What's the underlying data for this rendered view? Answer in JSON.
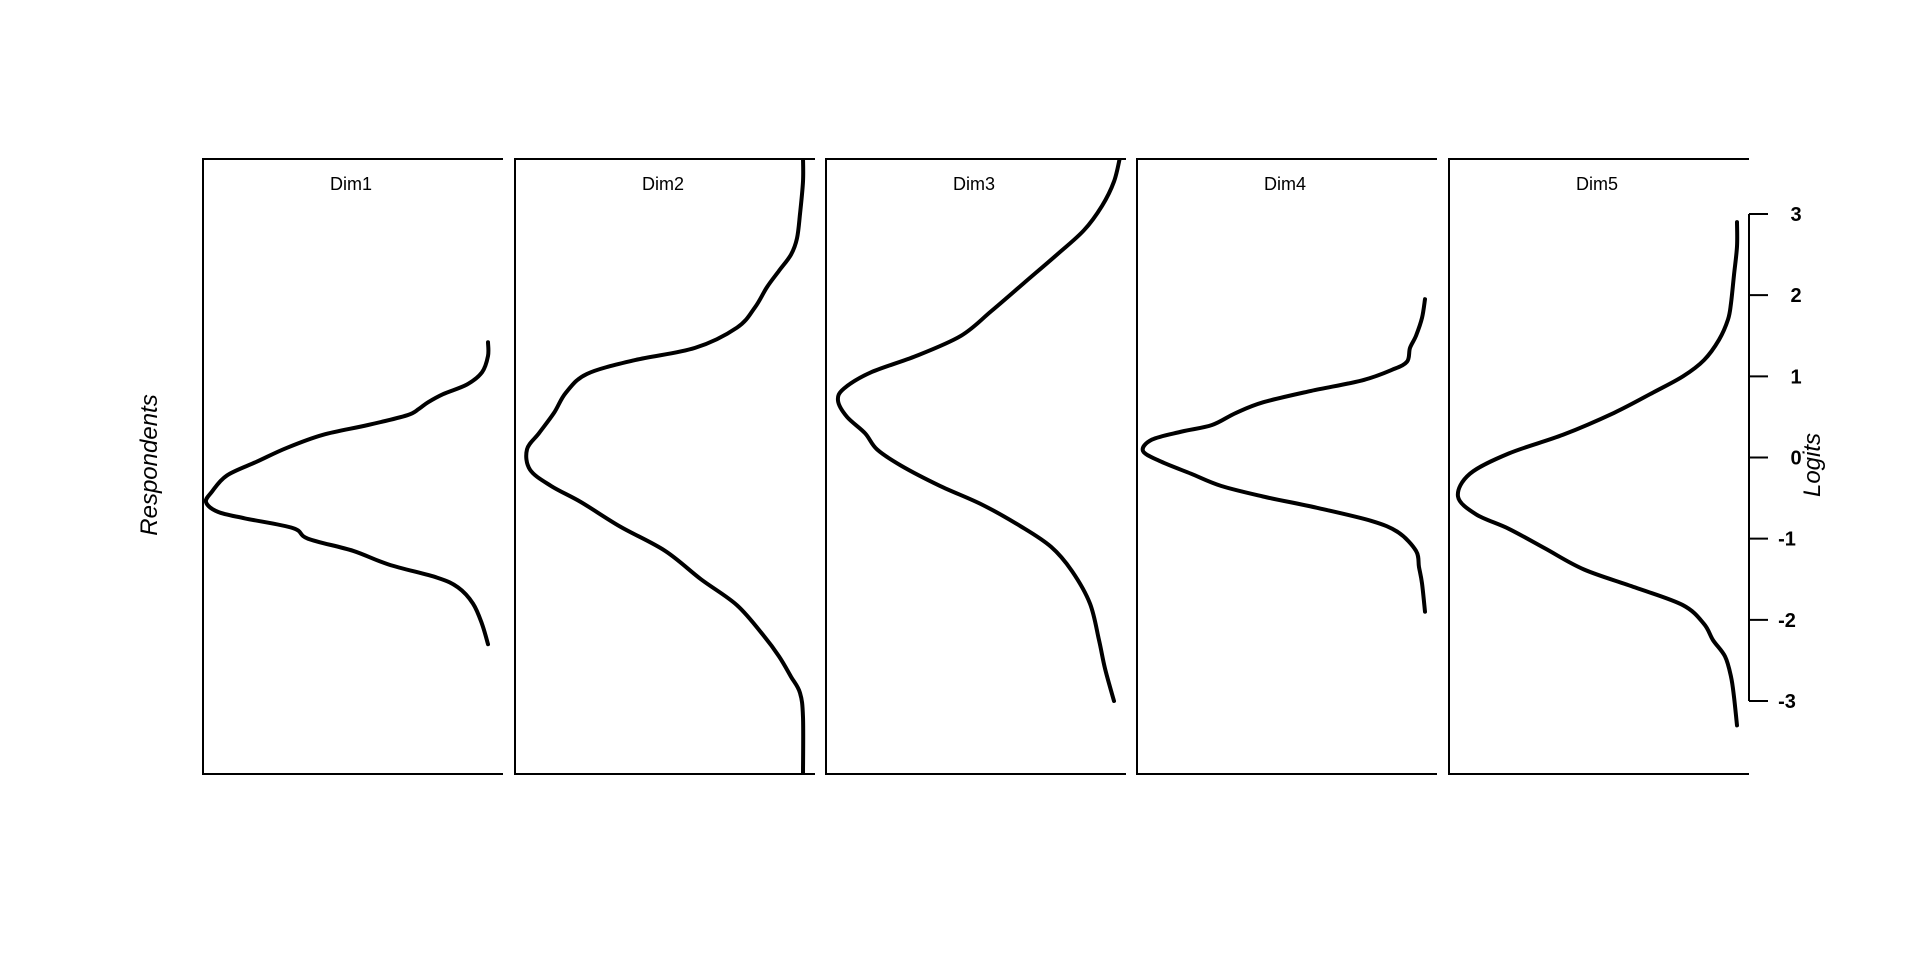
{
  "chart_data": {
    "type": "line",
    "ylabel": "Logits",
    "xlabel": "Respondents",
    "ylim": [
      -3.9,
      3.7
    ],
    "y_ticks": [
      3,
      2,
      1,
      0,
      -1,
      -2,
      -3
    ],
    "y_tick_labels": [
      "3",
      "2",
      "1",
      "0",
      "-1",
      "-2",
      "-3"
    ],
    "grid": false,
    "panels": [
      {
        "title": "Dim1",
        "points": [
          [
            0.95,
            1.42
          ],
          [
            0.95,
            1.25
          ],
          [
            0.93,
            1.05
          ],
          [
            0.88,
            0.9
          ],
          [
            0.8,
            0.78
          ],
          [
            0.75,
            0.68
          ],
          [
            0.72,
            0.6
          ],
          [
            0.68,
            0.52
          ],
          [
            0.55,
            0.4
          ],
          [
            0.4,
            0.28
          ],
          [
            0.28,
            0.12
          ],
          [
            0.18,
            -0.05
          ],
          [
            0.08,
            -0.22
          ],
          [
            0.03,
            -0.42
          ],
          [
            0.01,
            -0.55
          ],
          [
            0.05,
            -0.67
          ],
          [
            0.14,
            -0.75
          ],
          [
            0.3,
            -0.87
          ],
          [
            0.35,
            -1.0
          ],
          [
            0.5,
            -1.15
          ],
          [
            0.62,
            -1.32
          ],
          [
            0.78,
            -1.48
          ],
          [
            0.85,
            -1.6
          ],
          [
            0.9,
            -1.8
          ],
          [
            0.93,
            -2.05
          ],
          [
            0.95,
            -2.3
          ]
        ]
      },
      {
        "title": "Dim2",
        "points": [
          [
            0.96,
            3.7
          ],
          [
            0.96,
            3.4
          ],
          [
            0.95,
            3.0
          ],
          [
            0.94,
            2.7
          ],
          [
            0.92,
            2.5
          ],
          [
            0.88,
            2.3
          ],
          [
            0.84,
            2.1
          ],
          [
            0.8,
            1.85
          ],
          [
            0.74,
            1.6
          ],
          [
            0.6,
            1.35
          ],
          [
            0.4,
            1.2
          ],
          [
            0.24,
            1.03
          ],
          [
            0.17,
            0.8
          ],
          [
            0.13,
            0.55
          ],
          [
            0.08,
            0.3
          ],
          [
            0.04,
            0.1
          ],
          [
            0.05,
            -0.15
          ],
          [
            0.12,
            -0.35
          ],
          [
            0.22,
            -0.55
          ],
          [
            0.35,
            -0.85
          ],
          [
            0.5,
            -1.15
          ],
          [
            0.62,
            -1.5
          ],
          [
            0.74,
            -1.82
          ],
          [
            0.83,
            -2.2
          ],
          [
            0.88,
            -2.45
          ],
          [
            0.92,
            -2.7
          ],
          [
            0.95,
            -2.9
          ],
          [
            0.96,
            -3.2
          ],
          [
            0.96,
            -3.9
          ]
        ]
      },
      {
        "title": "Dim3",
        "points": [
          [
            0.98,
            3.7
          ],
          [
            0.96,
            3.4
          ],
          [
            0.92,
            3.1
          ],
          [
            0.86,
            2.8
          ],
          [
            0.77,
            2.5
          ],
          [
            0.66,
            2.15
          ],
          [
            0.55,
            1.8
          ],
          [
            0.45,
            1.5
          ],
          [
            0.3,
            1.25
          ],
          [
            0.15,
            1.05
          ],
          [
            0.06,
            0.85
          ],
          [
            0.04,
            0.7
          ],
          [
            0.07,
            0.5
          ],
          [
            0.13,
            0.3
          ],
          [
            0.17,
            0.1
          ],
          [
            0.25,
            -0.1
          ],
          [
            0.38,
            -0.35
          ],
          [
            0.52,
            -0.58
          ],
          [
            0.65,
            -0.85
          ],
          [
            0.75,
            -1.1
          ],
          [
            0.82,
            -1.4
          ],
          [
            0.88,
            -1.8
          ],
          [
            0.91,
            -2.25
          ],
          [
            0.93,
            -2.6
          ],
          [
            0.96,
            -3.0
          ]
        ]
      },
      {
        "title": "Dim4",
        "points": [
          [
            0.96,
            1.95
          ],
          [
            0.95,
            1.72
          ],
          [
            0.93,
            1.5
          ],
          [
            0.91,
            1.35
          ],
          [
            0.9,
            1.18
          ],
          [
            0.85,
            1.08
          ],
          [
            0.75,
            0.95
          ],
          [
            0.58,
            0.82
          ],
          [
            0.42,
            0.68
          ],
          [
            0.33,
            0.55
          ],
          [
            0.25,
            0.4
          ],
          [
            0.15,
            0.32
          ],
          [
            0.05,
            0.22
          ],
          [
            0.02,
            0.08
          ],
          [
            0.08,
            -0.05
          ],
          [
            0.18,
            -0.2
          ],
          [
            0.28,
            -0.35
          ],
          [
            0.42,
            -0.48
          ],
          [
            0.6,
            -0.62
          ],
          [
            0.78,
            -0.78
          ],
          [
            0.87,
            -0.92
          ],
          [
            0.93,
            -1.15
          ],
          [
            0.94,
            -1.35
          ],
          [
            0.95,
            -1.55
          ],
          [
            0.96,
            -1.9
          ]
        ]
      },
      {
        "title": "Dim5",
        "points": [
          [
            0.96,
            2.9
          ],
          [
            0.96,
            2.6
          ],
          [
            0.95,
            2.25
          ],
          [
            0.94,
            1.9
          ],
          [
            0.93,
            1.7
          ],
          [
            0.9,
            1.45
          ],
          [
            0.85,
            1.2
          ],
          [
            0.78,
            1.0
          ],
          [
            0.68,
            0.8
          ],
          [
            0.55,
            0.55
          ],
          [
            0.38,
            0.28
          ],
          [
            0.2,
            0.05
          ],
          [
            0.07,
            -0.2
          ],
          [
            0.03,
            -0.48
          ],
          [
            0.09,
            -0.7
          ],
          [
            0.2,
            -0.88
          ],
          [
            0.32,
            -1.12
          ],
          [
            0.45,
            -1.38
          ],
          [
            0.62,
            -1.6
          ],
          [
            0.78,
            -1.82
          ],
          [
            0.85,
            -2.05
          ],
          [
            0.88,
            -2.25
          ],
          [
            0.92,
            -2.45
          ],
          [
            0.94,
            -2.7
          ],
          [
            0.95,
            -2.95
          ],
          [
            0.96,
            -3.3
          ]
        ]
      }
    ]
  }
}
